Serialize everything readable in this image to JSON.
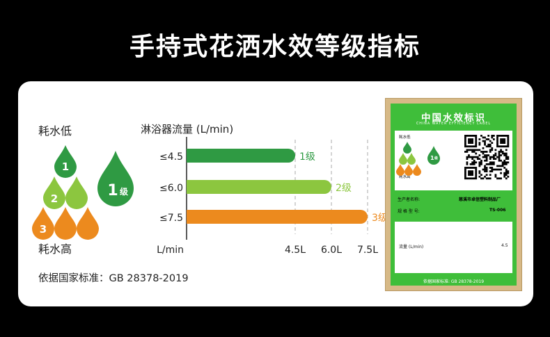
{
  "title": "手持式花洒水效等级指标",
  "legend": {
    "low_label": "耗水低",
    "high_label": "耗水高",
    "drops": [
      "1",
      "2",
      "3"
    ],
    "big_drop": "1",
    "big_drop_suffix": "级"
  },
  "standard_note": "依据国家标准：GB 28378-2019",
  "colors": {
    "grade1": "#2f9a43",
    "grade2": "#8cc63f",
    "grade3": "#ec8a1e"
  },
  "chart_data": {
    "type": "bar",
    "orientation": "horizontal",
    "title": "淋浴器流量 (L/min)",
    "xlabel": "L/min",
    "categories": [
      "≤4.5",
      "≤6.0",
      "≤7.5"
    ],
    "values": [
      4.5,
      6.0,
      7.5
    ],
    "bar_labels": [
      "1级",
      "2级",
      "3级"
    ],
    "x_ticks": [
      "4.5L",
      "6.0L",
      "7.5L"
    ],
    "x_tick_values": [
      4.5,
      6.0,
      7.5
    ],
    "xlim": [
      0,
      7.5
    ],
    "grid": "dashed vertical"
  },
  "label_card": {
    "title": "中国水效标识",
    "subtitle": "CHINA WATER EFFICIENCY LABEL",
    "low_label": "耗水低",
    "high_label": "耗水高",
    "grade": "1",
    "grade_suffix": "级",
    "producer_label": "生产者名称:",
    "producer_value": "慈溪市卓信塑料制品厂",
    "model_label": "规 格 型 号:",
    "model_value": "TS-006",
    "flow_label": "流量 (L/min)",
    "flow_value": "4.5",
    "footer": "依据国家标准: GB 28378-2019"
  }
}
